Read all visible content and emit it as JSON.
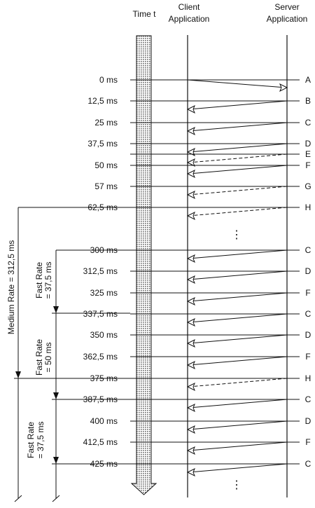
{
  "header": {
    "time_label": "Time t",
    "client_line1": "Client",
    "client_line2": "Application",
    "server_line1": "Server",
    "server_line2": "Application"
  },
  "colors": {
    "ink": "#111111",
    "arrow_fill": "#cfcfcf",
    "dashed": "#333333"
  },
  "rows": [
    {
      "time": "0 ms",
      "letter": "A",
      "dir": "right",
      "dashed": false
    },
    {
      "time": "12,5 ms",
      "letter": "B",
      "dir": "left",
      "dashed": false
    },
    {
      "time": "25 ms",
      "letter": "C",
      "dir": "left",
      "dashed": false
    },
    {
      "time": "37,5 ms",
      "letter": "D",
      "dir": "left",
      "dashed": false
    },
    {
      "time": "",
      "letter": "E",
      "dir": "left",
      "dashed": true
    },
    {
      "time": "50 ms",
      "letter": "F",
      "dir": "left",
      "dashed": false
    },
    {
      "time": "57 ms",
      "letter": "G",
      "dir": "left",
      "dashed": true
    },
    {
      "time": "62,5 ms",
      "letter": "H",
      "dir": "left",
      "dashed": true
    },
    {
      "time": "300 ms",
      "letter": "C",
      "dir": "left",
      "dashed": false
    },
    {
      "time": "312,5 ms",
      "letter": "D",
      "dir": "left",
      "dashed": false
    },
    {
      "time": "325 ms",
      "letter": "F",
      "dir": "left",
      "dashed": false
    },
    {
      "time": "337,5 ms",
      "letter": "C",
      "dir": "left",
      "dashed": false
    },
    {
      "time": "350 ms",
      "letter": "D",
      "dir": "left",
      "dashed": false
    },
    {
      "time": "362,5 ms",
      "letter": "F",
      "dir": "left",
      "dashed": false
    },
    {
      "time": "375 ms",
      "letter": "H",
      "dir": "left",
      "dashed": true
    },
    {
      "time": "387,5 ms",
      "letter": "C",
      "dir": "left",
      "dashed": false
    },
    {
      "time": "400 ms",
      "letter": "D",
      "dir": "left",
      "dashed": false
    },
    {
      "time": "412,5 ms",
      "letter": "F",
      "dir": "left",
      "dashed": false
    },
    {
      "time": "425 ms",
      "letter": "C",
      "dir": "left",
      "dashed": false
    }
  ],
  "brackets": {
    "medium": "Medium Rate = 312,5 ms",
    "fast1_line1": "Fast Rate",
    "fast1_line2": "= 37,5 ms",
    "fast2_line1": "Fast Rate",
    "fast2_line2": "= 50 ms",
    "fast3_line1": "Fast Rate",
    "fast3_line2": "= 37,5 ms"
  },
  "ellipsis": "⋮"
}
